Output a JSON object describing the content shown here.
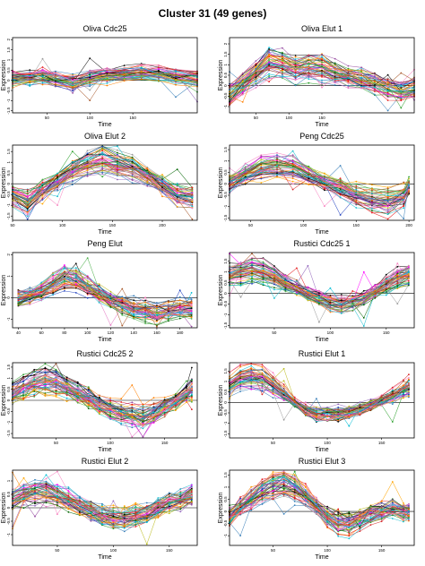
{
  "title": "Cluster 31 (49 genes)",
  "chart_data": [
    {
      "type": "line",
      "title": "Oliva Cdc25",
      "xlabel": "Time",
      "ylabel": "Expression",
      "xlim": [
        10,
        225
      ],
      "ylim": [
        -1.6,
        2.1
      ],
      "xticks": [
        "50",
        "100",
        "150"
      ],
      "yticks": [
        "-1.5",
        "-1",
        "-0.5",
        "0",
        "0.5",
        "1",
        "1.5",
        "2"
      ],
      "x": [
        10,
        30,
        45,
        60,
        80,
        100,
        120,
        140,
        160,
        180,
        200,
        225
      ],
      "profile": [
        0.1,
        0.1,
        0.2,
        0.05,
        -0.1,
        0.1,
        0.25,
        0.3,
        0.35,
        0.3,
        0.2,
        0.1
      ],
      "spread": 0.35,
      "n_series": 49
    },
    {
      "type": "line",
      "title": "Oliva Elut 1",
      "xlabel": "Time",
      "ylabel": "Expression",
      "xlim": [
        10,
        290
      ],
      "ylim": [
        -1.3,
        2.3
      ],
      "xticks": [
        "50",
        "100",
        "150"
      ],
      "yticks": [
        "-1",
        "-0.5",
        "0",
        "0.5",
        "1",
        "1.5",
        "2"
      ],
      "x": [
        10,
        30,
        50,
        70,
        90,
        110,
        130,
        150,
        170,
        190,
        210,
        230,
        250,
        270,
        290
      ],
      "profile": [
        -0.4,
        0.1,
        0.6,
        1.1,
        1.0,
        0.8,
        0.9,
        0.8,
        0.6,
        0.4,
        0.3,
        0.1,
        -0.1,
        -0.2,
        -0.1
      ],
      "spread": 0.45,
      "n_series": 49
    },
    {
      "type": "line",
      "title": "Oliva Elut 2",
      "xlabel": "Time",
      "ylabel": "Expression",
      "xlim": [
        50,
        235
      ],
      "ylim": [
        -1.7,
        1.8
      ],
      "xticks": [
        "50",
        "100",
        "150",
        "200"
      ],
      "yticks": [
        "-1.5",
        "-1",
        "-0.5",
        "0",
        "0.5",
        "1",
        "1.5"
      ],
      "x": [
        50,
        65,
        80,
        95,
        110,
        125,
        140,
        155,
        170,
        185,
        200,
        215,
        230
      ],
      "profile": [
        -0.6,
        -0.9,
        -0.3,
        0.1,
        0.6,
        0.9,
        1.1,
        0.9,
        0.7,
        0.3,
        -0.1,
        -0.6,
        -0.7
      ],
      "spread": 0.35,
      "n_series": 49
    },
    {
      "type": "line",
      "title": "Peng Cdc25",
      "xlabel": "Time",
      "ylabel": "Expression",
      "xlim": [
        30,
        205
      ],
      "ylim": [
        -1.6,
        1.7
      ],
      "xticks": [
        "50",
        "100",
        "150",
        "200"
      ],
      "yticks": [
        "-1.5",
        "-1",
        "-0.5",
        "0",
        "0.5",
        "1",
        "1.5"
      ],
      "x": [
        30,
        45,
        60,
        75,
        90,
        105,
        120,
        135,
        150,
        165,
        180,
        195,
        200
      ],
      "profile": [
        0.0,
        0.4,
        0.7,
        0.8,
        0.7,
        0.4,
        0.1,
        -0.2,
        -0.5,
        -0.7,
        -0.8,
        -0.5,
        -0.1
      ],
      "spread": 0.35,
      "n_series": 49
    },
    {
      "type": "line",
      "title": "Peng Elut",
      "xlabel": "Time",
      "ylabel": "Expression",
      "xlim": [
        35,
        195
      ],
      "ylim": [
        -1.4,
        2.1
      ],
      "xticks": [
        "40",
        "60",
        "80",
        "100",
        "120",
        "140",
        "160",
        "180"
      ],
      "yticks": [
        "-1",
        "0",
        "1",
        "2"
      ],
      "x": [
        40,
        50,
        60,
        70,
        80,
        90,
        100,
        110,
        120,
        130,
        140,
        150,
        160,
        170,
        180,
        190
      ],
      "profile": [
        0.0,
        0.1,
        0.3,
        0.6,
        0.9,
        0.8,
        0.5,
        0.2,
        -0.1,
        -0.3,
        -0.5,
        -0.6,
        -0.7,
        -0.6,
        -0.5,
        -0.5
      ],
      "spread": 0.35,
      "n_series": 49
    },
    {
      "type": "line",
      "title": "Rustici Cdc25 1",
      "xlabel": "Time",
      "ylabel": "Expression",
      "xlim": [
        10,
        175
      ],
      "ylim": [
        -1.6,
        1.9
      ],
      "xticks": [
        "50",
        "100",
        "150"
      ],
      "yticks": [
        "-1.5",
        "-1",
        "-0.5",
        "0",
        "0.5",
        "1",
        "1.5"
      ],
      "x": [
        10,
        20,
        30,
        40,
        50,
        60,
        70,
        80,
        90,
        100,
        110,
        120,
        130,
        140,
        150,
        160,
        170
      ],
      "profile": [
        0.9,
        1.0,
        1.1,
        1.0,
        0.8,
        0.5,
        0.3,
        0.0,
        -0.2,
        -0.4,
        -0.5,
        -0.4,
        -0.2,
        0.1,
        0.4,
        0.7,
        0.9
      ],
      "spread": 0.3,
      "n_series": 49
    },
    {
      "type": "line",
      "title": "Rustici Cdc25 2",
      "xlabel": "Time",
      "ylabel": "Expression",
      "xlim": [
        10,
        180
      ],
      "ylim": [
        -1.7,
        1.7
      ],
      "xticks": [
        "50",
        "100",
        "150"
      ],
      "yticks": [
        "-1.5",
        "-1",
        "-0.5",
        "0",
        "0.5",
        "1",
        "1.5"
      ],
      "x": [
        10,
        20,
        30,
        40,
        50,
        60,
        70,
        80,
        90,
        100,
        110,
        120,
        130,
        140,
        150,
        160,
        170,
        175
      ],
      "profile": [
        0.3,
        0.6,
        0.8,
        0.9,
        0.8,
        0.6,
        0.3,
        0.1,
        -0.2,
        -0.4,
        -0.6,
        -0.7,
        -0.8,
        -0.6,
        -0.3,
        0.0,
        0.3,
        0.5
      ],
      "spread": 0.4,
      "n_series": 49
    },
    {
      "type": "line",
      "title": "Rustici Elut 1",
      "xlabel": "Time",
      "ylabel": "Expression",
      "xlim": [
        10,
        180
      ],
      "ylim": [
        -1.7,
        1.9
      ],
      "xticks": [
        "50",
        "100",
        "150"
      ],
      "yticks": [
        "-1.5",
        "-1",
        "-0.5",
        "0",
        "0.5",
        "1",
        "1.5"
      ],
      "x": [
        10,
        20,
        30,
        40,
        50,
        60,
        70,
        80,
        90,
        100,
        110,
        120,
        130,
        140,
        150,
        160,
        170,
        175
      ],
      "profile": [
        0.8,
        1.1,
        1.2,
        1.1,
        0.8,
        0.4,
        0.0,
        -0.3,
        -0.5,
        -0.5,
        -0.5,
        -0.4,
        -0.3,
        -0.1,
        0.1,
        0.3,
        0.6,
        0.7
      ],
      "spread": 0.3,
      "n_series": 49
    },
    {
      "type": "line",
      "title": "Rustici Elut 2",
      "xlabel": "Time",
      "ylabel": "Expression",
      "xlim": [
        10,
        175
      ],
      "ylim": [
        -1.4,
        1.4
      ],
      "xticks": [
        "50",
        "100",
        "150"
      ],
      "yticks": [
        "-1",
        "-0.5",
        "0",
        "0.5",
        "1"
      ],
      "x": [
        10,
        20,
        30,
        40,
        50,
        60,
        70,
        80,
        90,
        100,
        110,
        120,
        130,
        140,
        150,
        160,
        170
      ],
      "profile": [
        0.3,
        0.5,
        0.6,
        0.6,
        0.5,
        0.3,
        0.1,
        -0.1,
        -0.3,
        -0.4,
        -0.4,
        -0.3,
        -0.2,
        0.0,
        0.2,
        0.3,
        0.5
      ],
      "spread": 0.3,
      "n_series": 49
    },
    {
      "type": "line",
      "title": "Rustici Elut 3",
      "xlabel": "Time",
      "ylabel": "Expression",
      "xlim": [
        10,
        180
      ],
      "ylim": [
        -1.4,
        1.7
      ],
      "xticks": [
        "50",
        "100",
        "150"
      ],
      "yticks": [
        "-1",
        "-0.5",
        "0",
        "0.5",
        "1",
        "1.5"
      ],
      "x": [
        10,
        20,
        30,
        40,
        50,
        60,
        70,
        80,
        90,
        100,
        110,
        120,
        130,
        140,
        150,
        160,
        170,
        175
      ],
      "profile": [
        -0.2,
        0.2,
        0.5,
        0.8,
        1.0,
        1.1,
        0.9,
        0.6,
        0.2,
        -0.2,
        -0.5,
        -0.5,
        -0.3,
        -0.1,
        0.0,
        0.1,
        0.0,
        0.0
      ],
      "spread": 0.35,
      "n_series": 49
    }
  ]
}
